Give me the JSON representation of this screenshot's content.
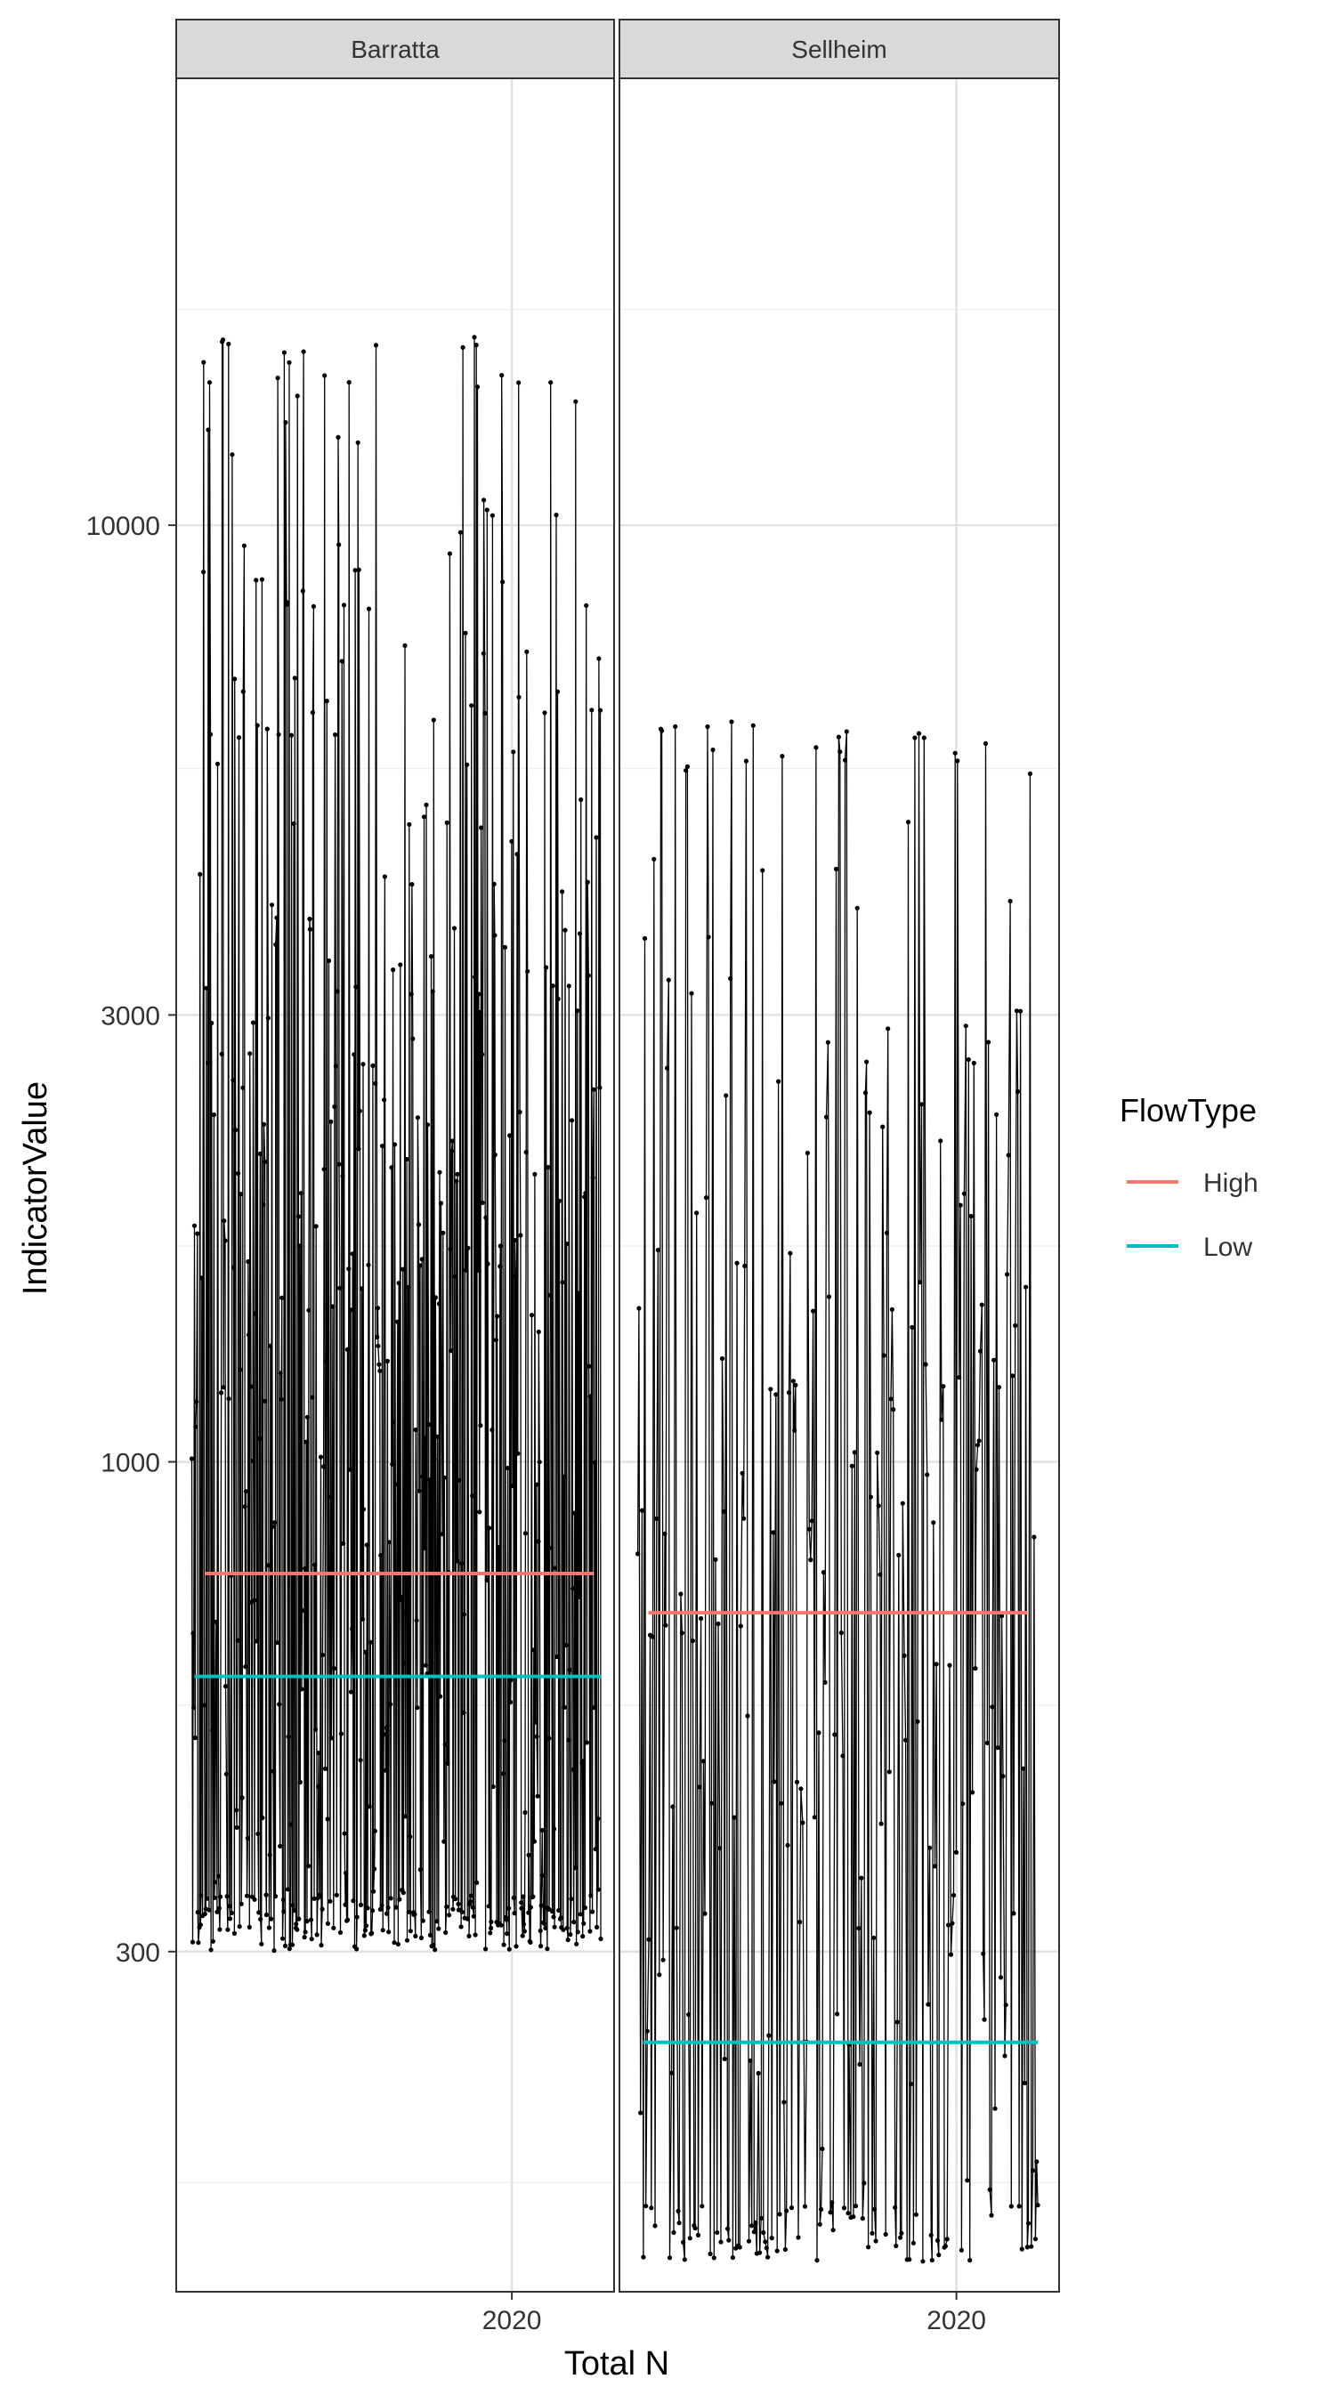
{
  "chart_data": {
    "type": "line",
    "xlabel": "Total N",
    "ylabel": "IndicatorValue",
    "y_scale": "log10",
    "y_range": [
      130,
      30000
    ],
    "y_ticks": [
      300,
      1000,
      3000,
      10000
    ],
    "y_tick_labels": [
      "300",
      "1000",
      "3000",
      "10000"
    ],
    "y_minor_ticks": [
      170,
      550,
      1700,
      5500,
      17000
    ],
    "x_range": [
      2007.2,
      2023.9
    ],
    "x_ticks": [
      2020
    ],
    "x_tick_labels": [
      "2020"
    ],
    "grid": true,
    "legend": {
      "title": "FlowType",
      "placement": "right",
      "entries": [
        {
          "name": "High",
          "color": "#F8766D"
        },
        {
          "name": "Low",
          "color": "#00BFC4"
        }
      ]
    },
    "panels": [
      {
        "label": "Barratta",
        "series_start": 2007.8,
        "series_end": 2023.4,
        "series_base": 780,
        "series_spread": 1.6,
        "series_min": 300,
        "series_max": 16000,
        "series_points": 620,
        "reference_lines": [
          {
            "name": "High",
            "value": 760,
            "x_start": 2008.3,
            "x_end": 2023.1
          },
          {
            "name": "Low",
            "value": 590,
            "x_start": 2007.9,
            "x_end": 2023.4
          }
        ]
      },
      {
        "label": "Sellheim",
        "series_start": 2007.9,
        "series_end": 2023.1,
        "series_base": 500,
        "series_spread": 1.7,
        "series_min": 140,
        "series_max": 6200,
        "series_points": 300,
        "reference_lines": [
          {
            "name": "High",
            "value": 690,
            "x_start": 2008.3,
            "x_end": 2022.7
          },
          {
            "name": "Low",
            "value": 240,
            "x_start": 2008.1,
            "x_end": 2023.1
          }
        ]
      }
    ]
  }
}
